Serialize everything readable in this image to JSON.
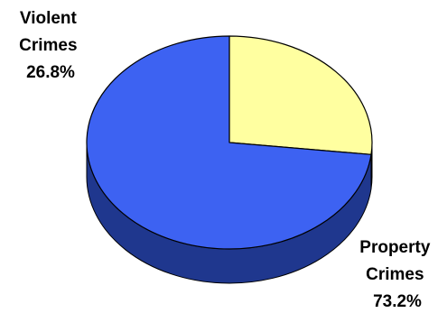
{
  "chart_data": {
    "type": "pie",
    "style": "3d",
    "categories": [
      "Violent Crimes",
      "Property Crimes"
    ],
    "label_lines": [
      [
        "Violent",
        "Crimes",
        "26.8%"
      ],
      [
        "Property",
        "Crimes",
        "73.2%"
      ]
    ],
    "values": [
      26.8,
      73.2
    ],
    "unit": "%",
    "colors": {
      "Violent Crimes": {
        "top": "#ffffa0",
        "side": "#d8d880"
      },
      "Property Crimes": {
        "top": "#3d62f2",
        "side": "#1f378e"
      }
    },
    "start": "12 o'clock, clockwise",
    "legend": "none"
  }
}
